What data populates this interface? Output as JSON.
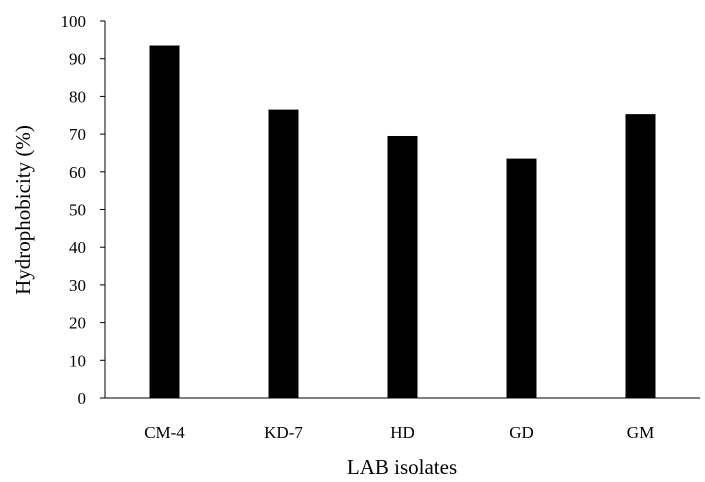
{
  "chart_data": {
    "type": "bar",
    "title": "",
    "xlabel": "LAB isolates",
    "ylabel": "Hydrophobicity (%)",
    "categories": [
      "CM-4",
      "KD-7",
      "HD",
      "GD",
      "GM"
    ],
    "values": [
      93.5,
      76.5,
      69.5,
      63.5,
      75.3
    ],
    "ylim": [
      0,
      100
    ],
    "yticks": [
      "0",
      "10",
      "20",
      "30",
      "40",
      "50",
      "60",
      "70",
      "80",
      "90",
      "100"
    ],
    "grid": false,
    "legend": "none",
    "bar_color": "#000000"
  }
}
